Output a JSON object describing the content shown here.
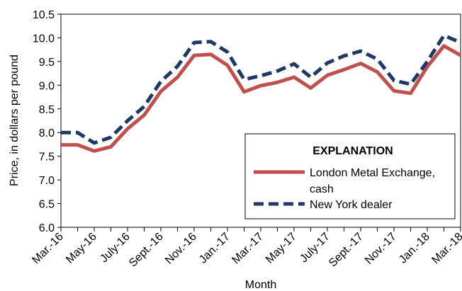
{
  "chart_data": {
    "type": "line",
    "xlabel": "Month",
    "ylabel": "Price, in dollars per pound",
    "ylim": [
      6.0,
      10.5
    ],
    "yticks": [
      "6.0",
      "6.5",
      "7.0",
      "7.5",
      "8.0",
      "8.5",
      "9.0",
      "9.5",
      "10.0",
      "10.5"
    ],
    "categories": [
      "Mar.-16",
      "Apr.-16",
      "May-16",
      "June-16",
      "July-16",
      "Aug.-16",
      "Sept.-16",
      "Oct.-16",
      "Nov.-16",
      "Dec.-16",
      "Jan.-17",
      "Feb.-17",
      "Mar.-17",
      "Apr.-17",
      "May-17",
      "June-17",
      "July-17",
      "Aug.-17",
      "Sept.-17",
      "Oct.-17",
      "Nov.-17",
      "Dec.-17",
      "Jan.-18",
      "Feb.-18",
      "Mar.-18"
    ],
    "tick_labels": [
      "Mar.-16",
      "",
      "May-16",
      "",
      "July-16",
      "",
      "Sept.-16",
      "",
      "Nov.-16",
      "",
      "Jan.-17",
      "",
      "Mar.-17",
      "",
      "May-17",
      "",
      "July-17",
      "",
      "Sept.-17",
      "",
      "Nov.-17",
      "",
      "Jan.-18",
      "",
      "Mar.-18"
    ],
    "series": [
      {
        "name": "London Metal Exchange, cash",
        "color": "#c0504d",
        "style": "solid",
        "values": [
          7.74,
          7.74,
          7.61,
          7.7,
          8.08,
          8.37,
          8.87,
          9.17,
          9.63,
          9.65,
          9.42,
          8.86,
          8.99,
          9.06,
          9.17,
          8.94,
          9.21,
          9.33,
          9.46,
          9.28,
          8.88,
          8.83,
          9.39,
          9.83,
          9.63
        ]
      },
      {
        "name": "New York dealer",
        "color": "#1f3864",
        "style": "dashed",
        "values": [
          8.0,
          8.0,
          7.78,
          7.9,
          8.25,
          8.55,
          9.08,
          9.4,
          9.9,
          9.92,
          9.7,
          9.12,
          9.2,
          9.3,
          9.45,
          9.17,
          9.47,
          9.62,
          9.72,
          9.55,
          9.1,
          9.02,
          9.5,
          10.05,
          9.9
        ]
      }
    ],
    "legend": {
      "title": "EXPLANATION",
      "position": "bottom-right",
      "label_lines": [
        [
          "London Metal Exchange,",
          "cash"
        ],
        [
          "New York dealer"
        ]
      ]
    },
    "grid": false
  }
}
